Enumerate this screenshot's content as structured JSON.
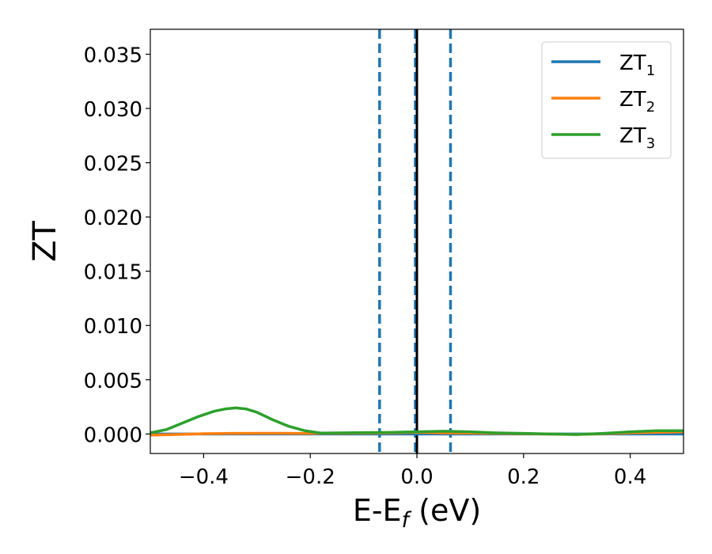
{
  "chart_data": {
    "type": "line",
    "xlabel": "E-E",
    "xlabel_sub": "f",
    "xlabel_unit": " (eV)",
    "ylabel": "ZT",
    "xlim": [
      -0.5,
      0.5
    ],
    "ylim": [
      -0.0018,
      0.0373
    ],
    "x_ticks": [
      -0.4,
      -0.2,
      0.0,
      0.2,
      0.4
    ],
    "x_tick_labels": [
      "−0.4",
      "−0.2",
      "0.0",
      "0.2",
      "0.4"
    ],
    "y_ticks": [
      0.0,
      0.005,
      0.01,
      0.015,
      0.02,
      0.025,
      0.03,
      0.035
    ],
    "y_tick_labels": [
      "0.000",
      "0.005",
      "0.010",
      "0.015",
      "0.020",
      "0.025",
      "0.030",
      "0.035"
    ],
    "grid": false,
    "legend": {
      "position": "upper-right",
      "entries": [
        {
          "base": "ZT",
          "sub": "1",
          "color": "#1f77b4"
        },
        {
          "base": "ZT",
          "sub": "2",
          "color": "#ff7f0e"
        },
        {
          "base": "ZT",
          "sub": "3",
          "color": "#2ca02c"
        }
      ]
    },
    "vertical_lines": [
      {
        "x": -0.07,
        "color": "#1f77b4",
        "style": "dashed"
      },
      {
        "x": -0.003,
        "color": "#1f77b4",
        "style": "dashed"
      },
      {
        "x": 0.0,
        "color": "#000000",
        "style": "solid"
      },
      {
        "x": 0.063,
        "color": "#1f77b4",
        "style": "dashed"
      }
    ],
    "series": [
      {
        "name": "ZT1",
        "color": "#1f77b4",
        "x": [
          -0.5,
          -0.4,
          -0.3,
          -0.2,
          -0.1,
          0.0,
          0.1,
          0.2,
          0.3,
          0.4,
          0.5
        ],
        "y": [
          0.0,
          0.0,
          0.0,
          0.0,
          0.0,
          0.0,
          0.0,
          0.0,
          0.0,
          0.0,
          0.0
        ]
      },
      {
        "name": "ZT2",
        "color": "#ff7f0e",
        "x": [
          -0.5,
          -0.45,
          -0.4,
          -0.35,
          -0.3,
          -0.25,
          -0.2,
          -0.15,
          -0.1,
          -0.05,
          0.0,
          0.05,
          0.1,
          0.15,
          0.2,
          0.25,
          0.3,
          0.35,
          0.4,
          0.45,
          0.5
        ],
        "y": [
          -0.0001,
          -5e-05,
          2e-05,
          5e-05,
          6e-05,
          6e-05,
          5e-05,
          6e-05,
          8e-05,
          0.0001,
          0.00015,
          0.0001,
          8e-05,
          5e-05,
          2e-05,
          -1e-05,
          -5e-05,
          2e-05,
          0.0001,
          0.00015,
          0.0002
        ]
      },
      {
        "name": "ZT3",
        "color": "#2ca02c",
        "x": [
          -0.5,
          -0.47,
          -0.44,
          -0.41,
          -0.38,
          -0.36,
          -0.34,
          -0.32,
          -0.3,
          -0.27,
          -0.24,
          -0.21,
          -0.18,
          -0.15,
          -0.1,
          -0.05,
          0.0,
          0.05,
          0.1,
          0.15,
          0.2,
          0.25,
          0.3,
          0.35,
          0.4,
          0.45,
          0.5
        ],
        "y": [
          0.0001,
          0.0004,
          0.001,
          0.0016,
          0.0021,
          0.0023,
          0.0024,
          0.0023,
          0.002,
          0.0013,
          0.0007,
          0.0003,
          8e-05,
          0.0001,
          0.00012,
          0.00014,
          0.0002,
          0.00025,
          0.0002,
          0.0001,
          5e-05,
          0.0,
          -5e-05,
          5e-05,
          0.0002,
          0.0003,
          0.0003
        ]
      }
    ]
  }
}
